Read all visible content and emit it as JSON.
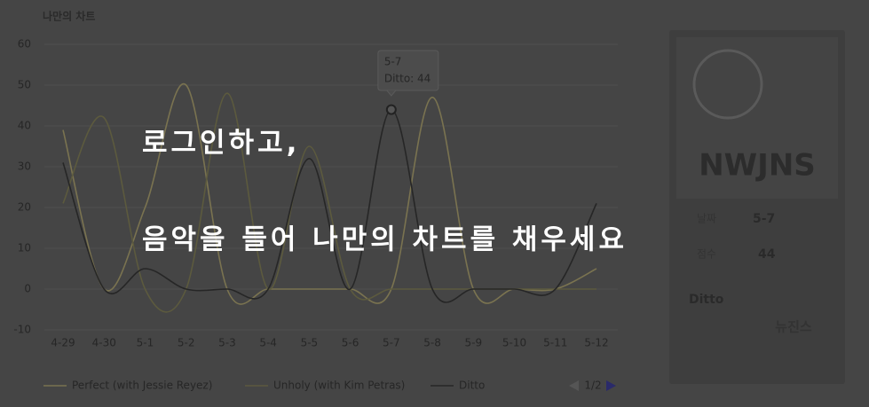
{
  "chart_data": {
    "type": "line",
    "title": "나만의 차트",
    "categories": [
      "4-29",
      "4-30",
      "5-1",
      "5-2",
      "5-3",
      "5-4",
      "5-5",
      "5-6",
      "5-7",
      "5-8",
      "5-9",
      "5-10",
      "5-11",
      "5-12"
    ],
    "series": [
      {
        "name": "Perfect (with Jessie Reyez)",
        "color": "#7a7350",
        "values": [
          39,
          0,
          20,
          50,
          0,
          0,
          0,
          0,
          0,
          47,
          0,
          0,
          0,
          5
        ]
      },
      {
        "name": "Unholy (with Kim Petras)",
        "color": "#5c5a3e",
        "values": [
          21,
          42,
          0,
          0,
          48,
          0,
          35,
          0,
          0,
          0,
          0,
          0,
          0,
          0
        ]
      },
      {
        "name": "Ditto",
        "color": "#262626",
        "values": [
          31,
          0,
          5,
          0,
          0,
          0,
          32,
          0,
          44,
          0,
          0,
          0,
          0,
          21
        ]
      }
    ],
    "ylim": [
      -10,
      60
    ],
    "yticks": [
      -10,
      0,
      10,
      20,
      30,
      40,
      50,
      60
    ],
    "grid": true,
    "legend": "bottom",
    "legend_page": "1/2",
    "tooltip": {
      "title": "5-7",
      "text": "Ditto: 44"
    }
  },
  "panel": {
    "image_text": "NWJNS",
    "date_label": "날짜",
    "date": "5-7",
    "score_label": "점수",
    "score": 44,
    "song": "Ditto",
    "artist": "뉴진스"
  },
  "overlay": {
    "line1": "로그인하고,",
    "line2": "음악을 들어 나만의 차트를 채우세요"
  }
}
